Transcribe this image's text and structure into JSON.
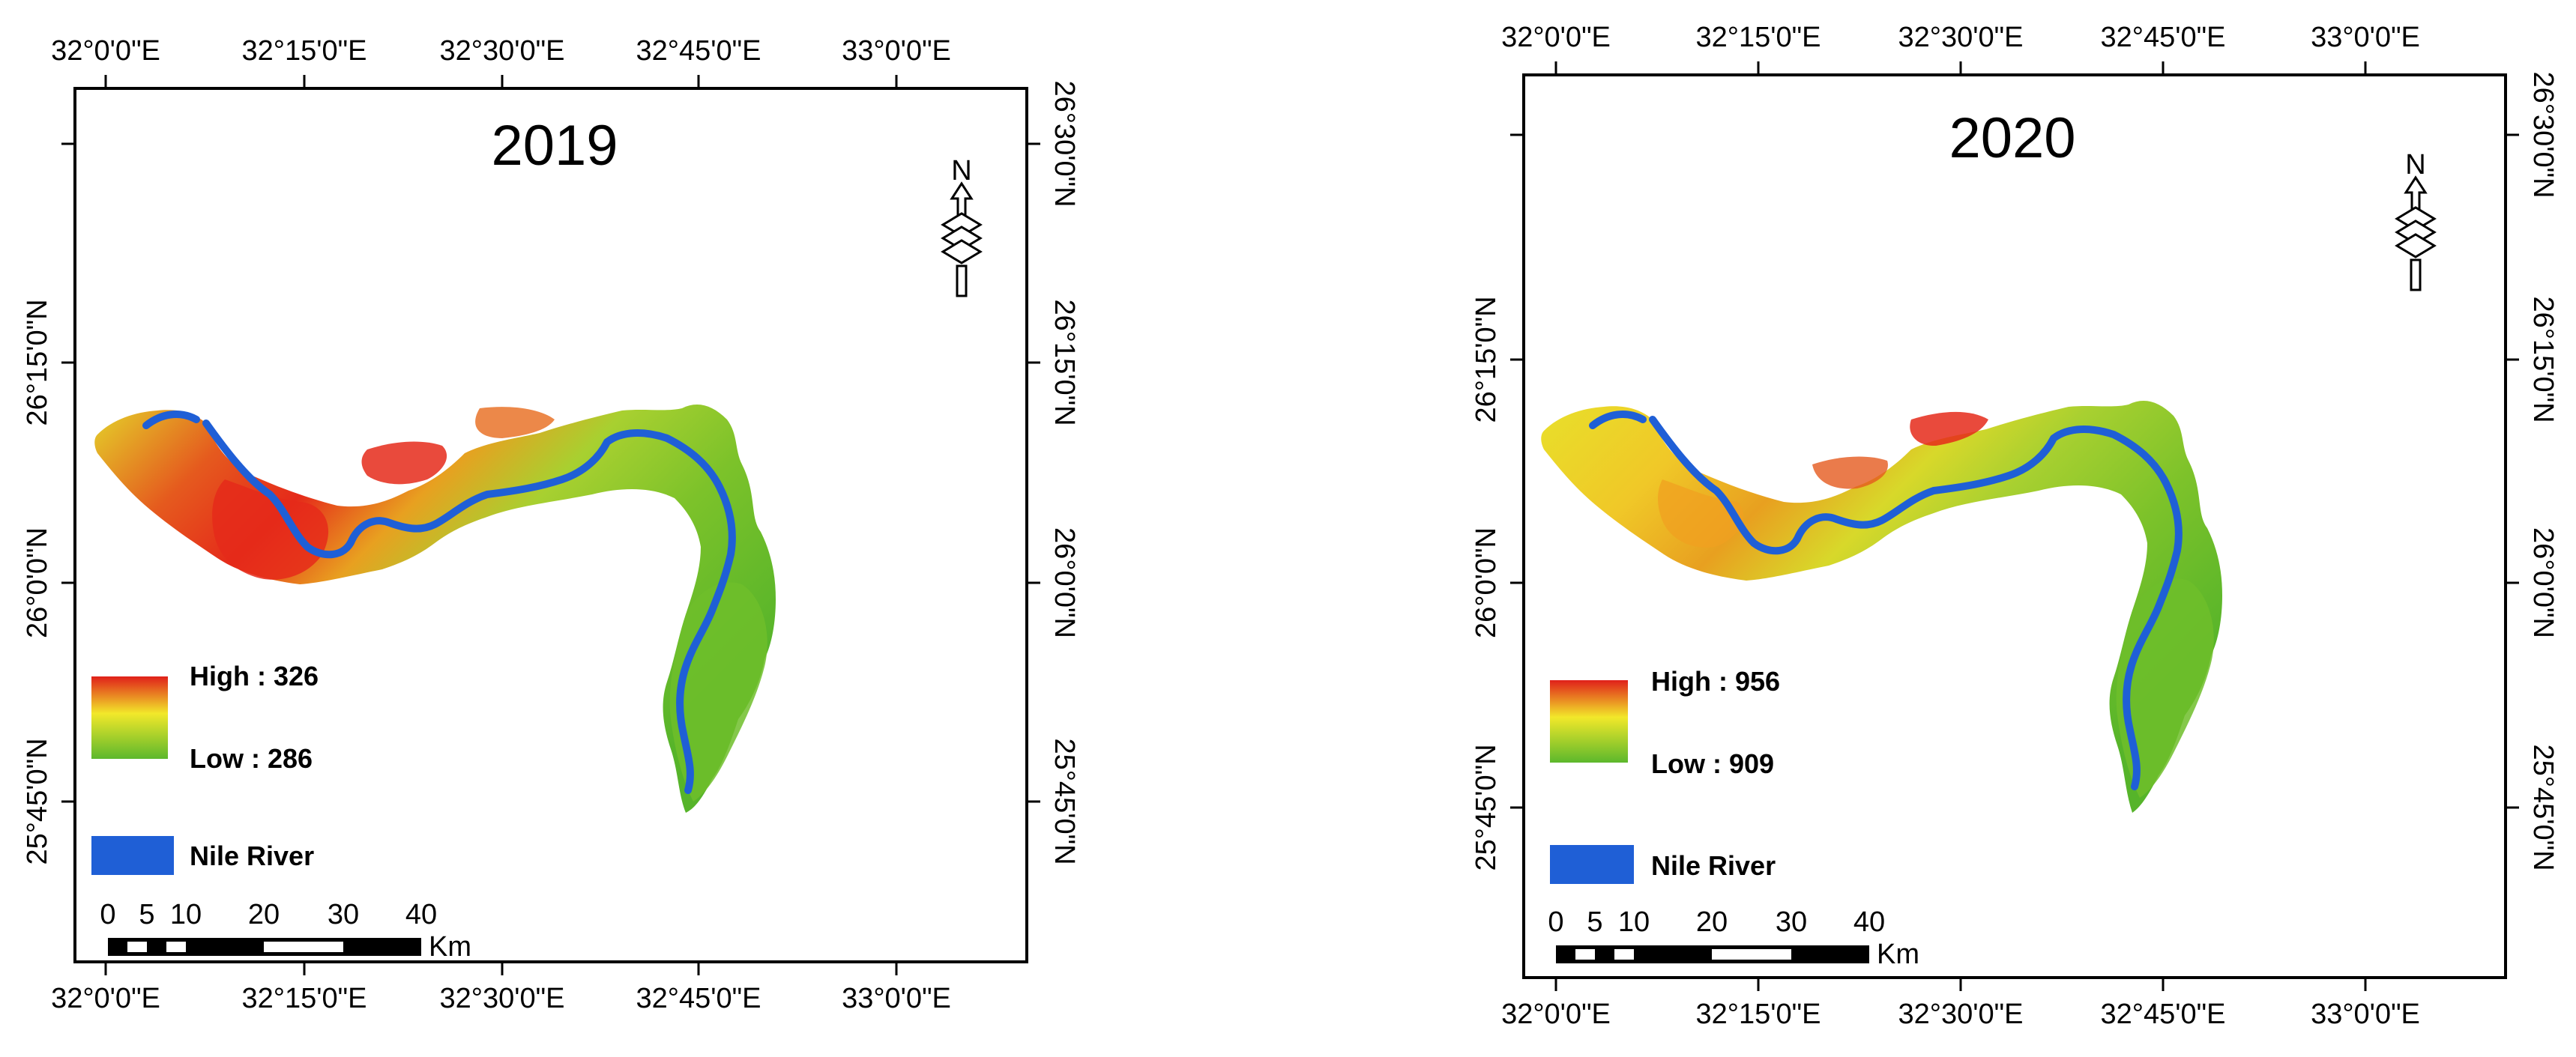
{
  "colors": {
    "river": "#1f5fd6",
    "high": "#e0201a",
    "mid": "#f2e82a",
    "low": "#5cb82c",
    "frame": "#000000"
  },
  "panels": [
    {
      "year": "2019",
      "legend": {
        "high": "High : 326",
        "low": "Low : 286",
        "river": "Nile River"
      },
      "top_axis": [
        "32°0'0\"E",
        "32°15'0\"E",
        "32°30'0\"E",
        "32°45'0\"E",
        "33°0'0\"E"
      ],
      "bottom_axis": [
        "32°0'0\"E",
        "32°15'0\"E",
        "32°30'0\"E",
        "32°45'0\"E",
        "33°0'0\"E"
      ],
      "left_axis": [
        "26°15'0\"N",
        "26°0'0\"N",
        "25°45'0\"N"
      ],
      "right_axis": [
        "26°30'0\"N",
        "26°15'0\"N",
        "26°0'0\"N",
        "25°45'0\"N"
      ],
      "scale": {
        "ticks": [
          "0",
          "5",
          "10",
          "20",
          "30",
          "40"
        ],
        "unit": "Km"
      },
      "north": "N"
    },
    {
      "year": "2020",
      "legend": {
        "high": "High : 956",
        "low": "Low : 909",
        "river": "Nile River"
      },
      "top_axis": [
        "32°0'0\"E",
        "32°15'0\"E",
        "32°30'0\"E",
        "32°45'0\"E",
        "33°0'0\"E"
      ],
      "bottom_axis": [
        "32°0'0\"E",
        "32°15'0\"E",
        "32°30'0\"E",
        "32°45'0\"E",
        "33°0'0\"E"
      ],
      "left_axis": [
        "26°15'0\"N",
        "26°0'0\"N",
        "25°45'0\"N"
      ],
      "right_axis": [
        "26°30'0\"N",
        "26°15'0\"N",
        "26°0'0\"N",
        "25°45'0\"N"
      ],
      "scale": {
        "ticks": [
          "0",
          "5",
          "10",
          "20",
          "30",
          "40"
        ],
        "unit": "Km"
      },
      "north": "N"
    }
  ]
}
